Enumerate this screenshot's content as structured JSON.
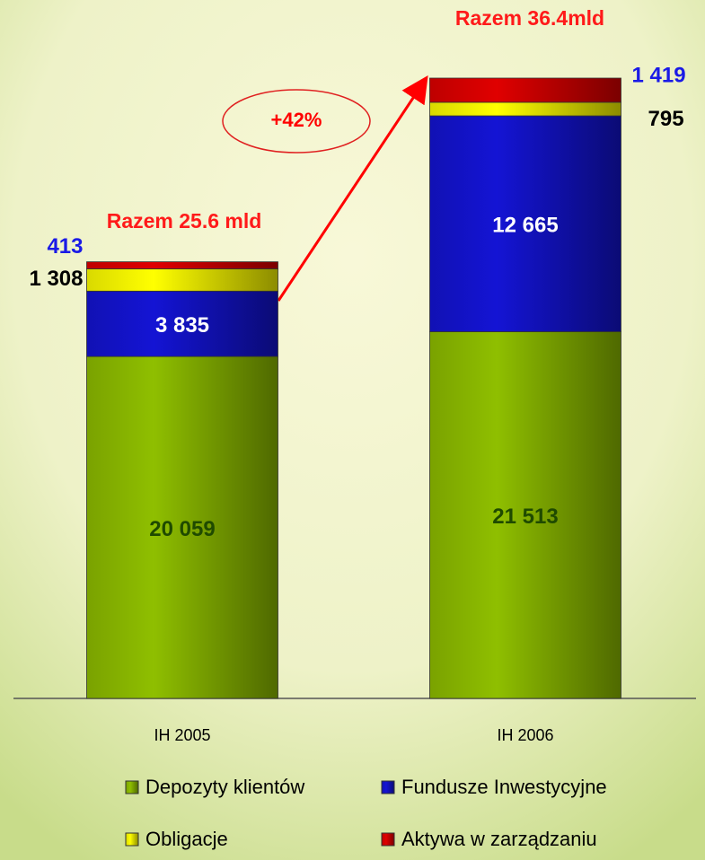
{
  "chart_data": {
    "type": "stacked_bar",
    "categories": [
      "IH 2005",
      "IH 2006"
    ],
    "series": [
      {
        "name": "Depozyty klientów",
        "color": "#8fbf00",
        "values": [
          20059,
          21513
        ],
        "value_labels": [
          "20 059",
          "21 513"
        ]
      },
      {
        "name": "Fundusze Inwestycyjne",
        "color": "#1414d4",
        "values": [
          3835,
          12665
        ],
        "value_labels": [
          "3 835",
          "12 665"
        ]
      },
      {
        "name": "Obligacje",
        "color": "#ffff00",
        "values": [
          1308,
          795
        ],
        "value_labels": [
          "1 308",
          "795"
        ]
      },
      {
        "name": "Aktywa w zarządzaniu",
        "color": "#e00000",
        "values": [
          413,
          1419
        ],
        "value_labels": [
          "413",
          "1 419"
        ]
      }
    ],
    "annotations": [
      "Razem 25.6 mld",
      "Razem 36.4mld",
      "+42%"
    ]
  }
}
